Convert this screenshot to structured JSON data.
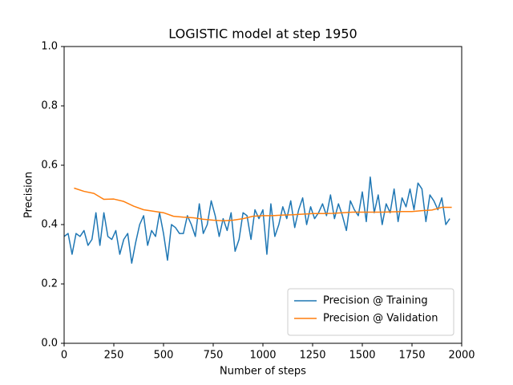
{
  "chart_data": {
    "type": "line",
    "title": "LOGISTIC model at step 1950",
    "xlabel": "Number of steps",
    "ylabel": "Precision",
    "xlim": [
      0,
      2000
    ],
    "xticks": [
      0,
      250,
      500,
      750,
      1000,
      1250,
      1500,
      1750,
      2000
    ],
    "ylim": [
      0,
      1
    ],
    "yticks": [
      {
        "value": 0,
        "label": "0.0"
      },
      {
        "value": 0.2,
        "label": "0.2"
      },
      {
        "value": 0.4,
        "label": "0.4"
      },
      {
        "value": 0.6,
        "label": "0.6"
      },
      {
        "value": 0.8,
        "label": "0.8"
      },
      {
        "value": 1,
        "label": "1.0"
      }
    ],
    "legend": "lower right",
    "series": [
      {
        "name": "Precision @ Training",
        "color": "#1f77b4",
        "x": [
          0,
          20,
          40,
          60,
          80,
          100,
          120,
          140,
          160,
          180,
          200,
          220,
          240,
          260,
          280,
          300,
          320,
          340,
          360,
          380,
          400,
          420,
          440,
          460,
          480,
          500,
          520,
          540,
          560,
          580,
          600,
          620,
          640,
          660,
          680,
          700,
          720,
          740,
          760,
          780,
          800,
          820,
          840,
          860,
          880,
          900,
          920,
          940,
          960,
          980,
          1000,
          1020,
          1040,
          1060,
          1080,
          1100,
          1120,
          1140,
          1160,
          1180,
          1200,
          1220,
          1240,
          1260,
          1280,
          1300,
          1320,
          1340,
          1360,
          1380,
          1400,
          1420,
          1440,
          1460,
          1480,
          1500,
          1520,
          1540,
          1560,
          1580,
          1600,
          1620,
          1640,
          1660,
          1680,
          1700,
          1720,
          1740,
          1760,
          1780,
          1800,
          1820,
          1840,
          1860,
          1880,
          1900,
          1920,
          1940
        ],
        "values": [
          0.36,
          0.37,
          0.3,
          0.37,
          0.36,
          0.38,
          0.33,
          0.35,
          0.44,
          0.33,
          0.44,
          0.36,
          0.35,
          0.38,
          0.3,
          0.35,
          0.37,
          0.27,
          0.34,
          0.4,
          0.43,
          0.33,
          0.38,
          0.36,
          0.44,
          0.37,
          0.28,
          0.4,
          0.39,
          0.37,
          0.37,
          0.43,
          0.4,
          0.36,
          0.47,
          0.37,
          0.4,
          0.48,
          0.43,
          0.36,
          0.42,
          0.38,
          0.44,
          0.31,
          0.35,
          0.44,
          0.43,
          0.35,
          0.45,
          0.42,
          0.45,
          0.3,
          0.47,
          0.36,
          0.4,
          0.46,
          0.42,
          0.48,
          0.39,
          0.45,
          0.49,
          0.4,
          0.46,
          0.42,
          0.44,
          0.47,
          0.43,
          0.5,
          0.42,
          0.47,
          0.43,
          0.38,
          0.48,
          0.45,
          0.43,
          0.51,
          0.41,
          0.56,
          0.44,
          0.5,
          0.4,
          0.47,
          0.44,
          0.52,
          0.41,
          0.49,
          0.46,
          0.52,
          0.45,
          0.54,
          0.52,
          0.41,
          0.5,
          0.48,
          0.45,
          0.49,
          0.4,
          0.42
        ]
      },
      {
        "name": "Precision @ Validation",
        "color": "#ff7f0e",
        "x": [
          50,
          100,
          150,
          200,
          250,
          300,
          350,
          400,
          450,
          500,
          550,
          600,
          650,
          700,
          750,
          800,
          850,
          900,
          950,
          1000,
          1050,
          1100,
          1150,
          1200,
          1250,
          1300,
          1350,
          1400,
          1450,
          1500,
          1550,
          1600,
          1650,
          1700,
          1750,
          1800,
          1850,
          1900,
          1950
        ],
        "values": [
          0.523,
          0.512,
          0.505,
          0.485,
          0.486,
          0.478,
          0.462,
          0.45,
          0.445,
          0.44,
          0.428,
          0.425,
          0.423,
          0.418,
          0.415,
          0.413,
          0.415,
          0.42,
          0.428,
          0.43,
          0.43,
          0.432,
          0.433,
          0.435,
          0.437,
          0.437,
          0.438,
          0.44,
          0.442,
          0.442,
          0.442,
          0.442,
          0.443,
          0.444,
          0.444,
          0.447,
          0.449,
          0.458,
          0.458
        ]
      }
    ]
  }
}
